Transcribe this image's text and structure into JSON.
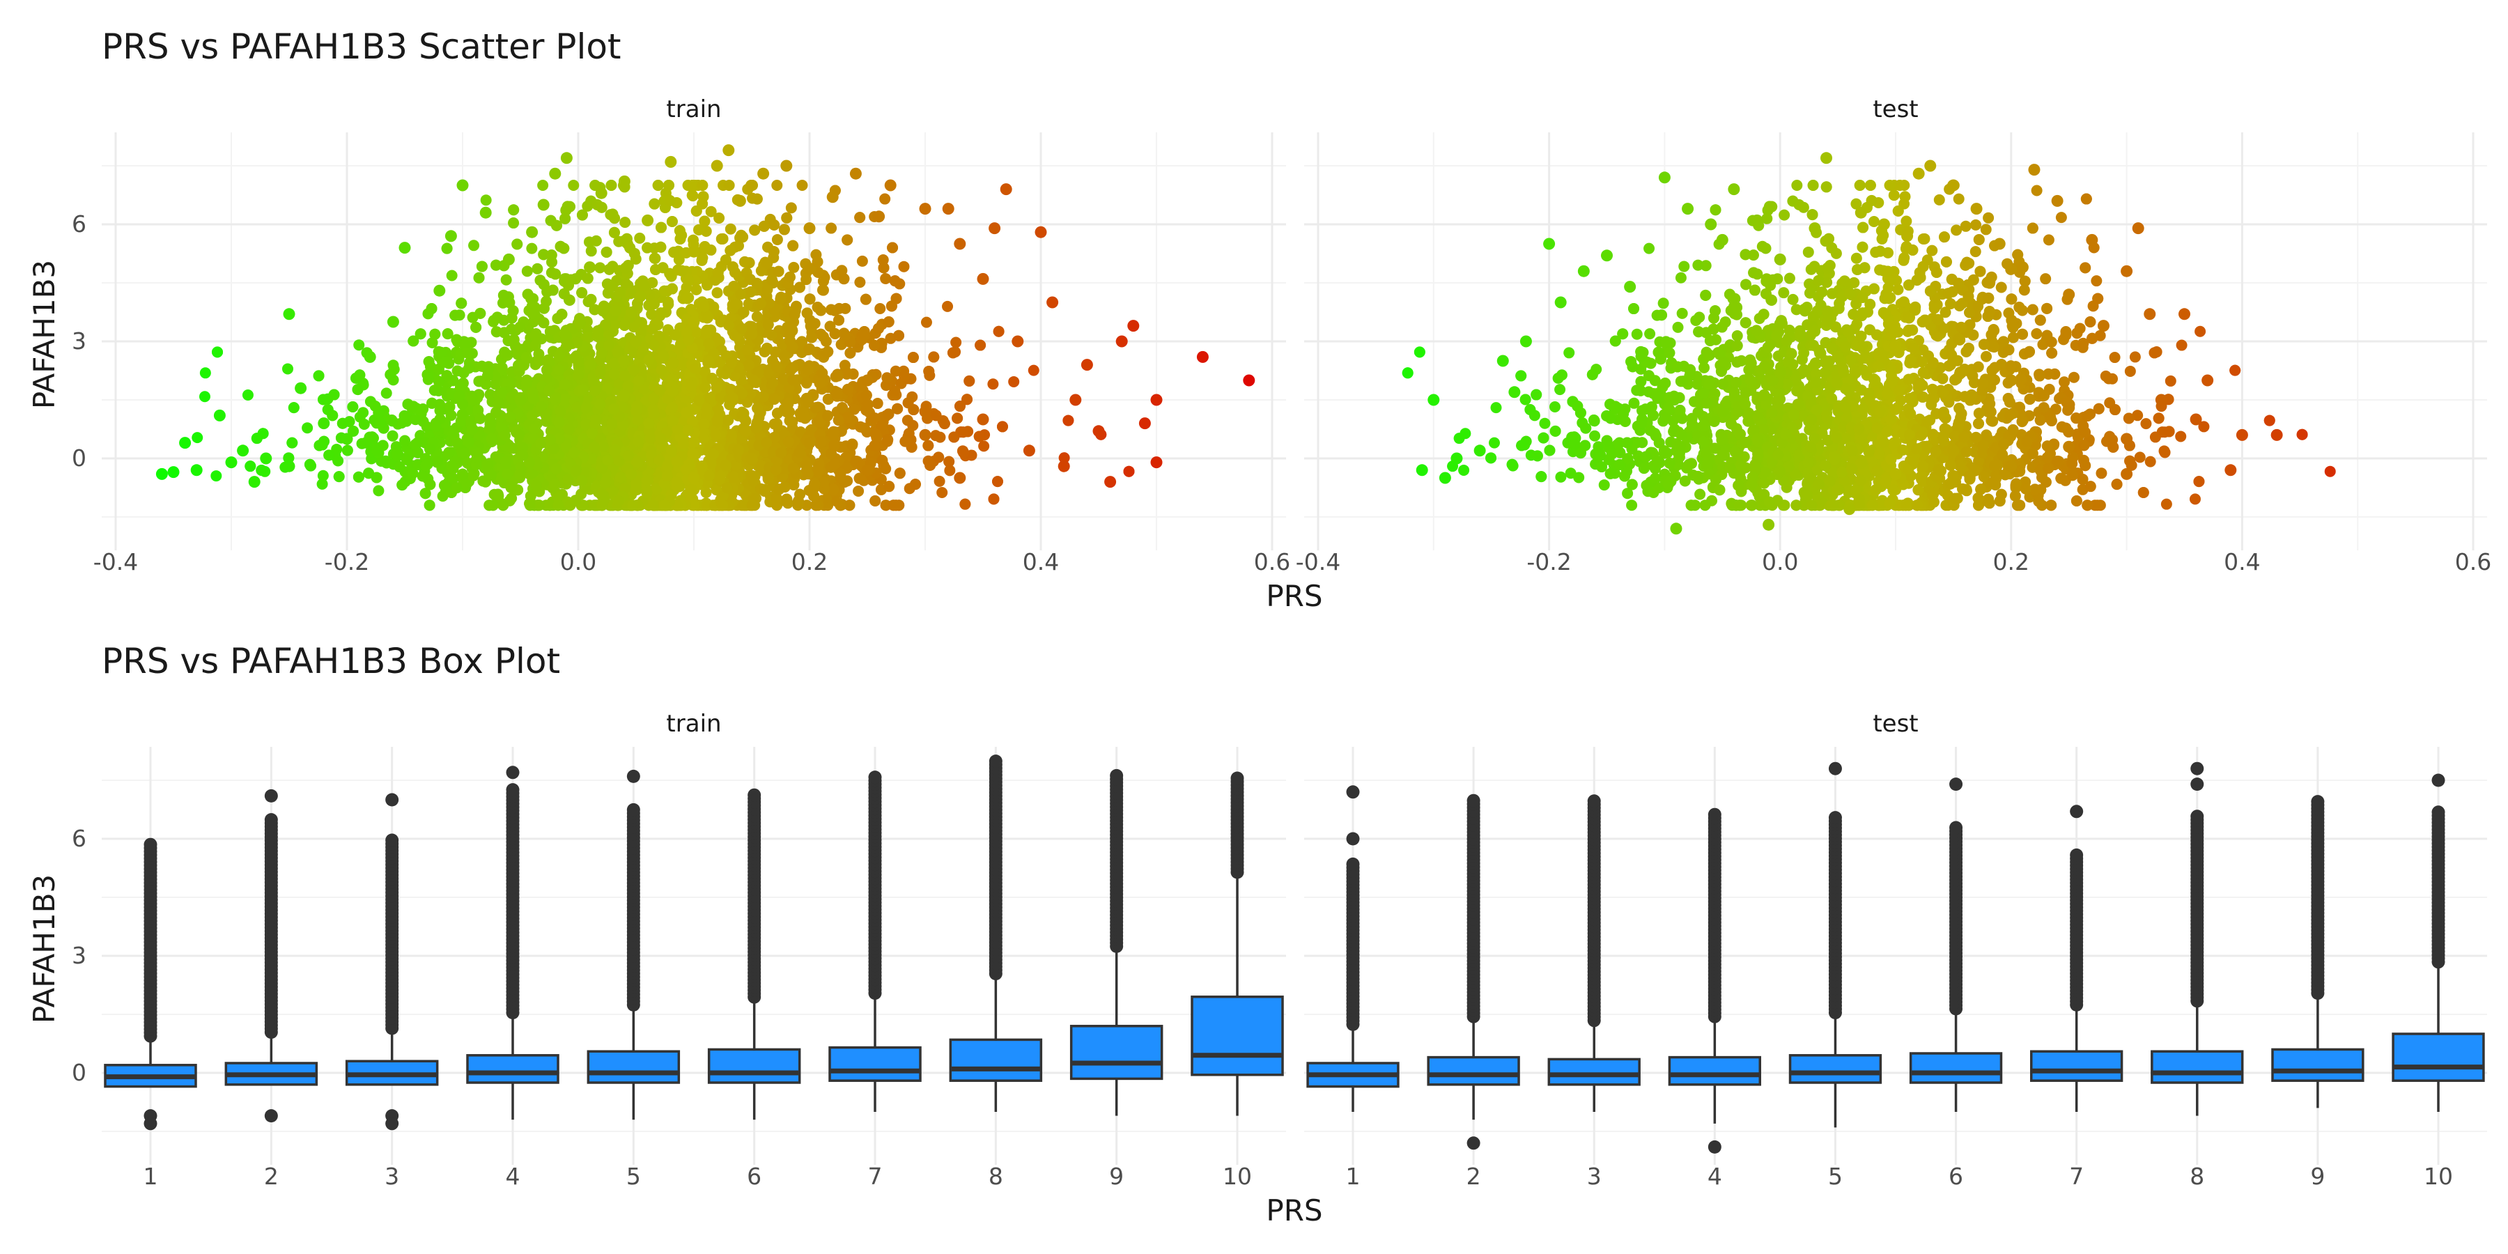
{
  "chart_data": [
    {
      "type": "scatter",
      "title": "PRS vs PAFAH1B3 Scatter Plot",
      "xlabel": "PRS",
      "ylabel": "PAFAH1B3",
      "facets": [
        "train",
        "test"
      ],
      "xlim": [
        -0.4,
        0.6
      ],
      "ylim": [
        -2,
        8
      ],
      "xticks": [
        -0.4,
        -0.2,
        0.0,
        0.2,
        0.4,
        0.6
      ],
      "xtick_labels": [
        "-0.4",
        "-0.2",
        "0.0",
        "0.2",
        "0.4",
        "0.6"
      ],
      "yticks": [
        0,
        3,
        6
      ],
      "ytick_labels": [
        "0",
        "3",
        "6"
      ],
      "color_scale": {
        "low": "#00ff00",
        "mid": "#b8b800",
        "high": "#e00000"
      },
      "series": [
        {
          "facet": "train",
          "points": [
            [
              -0.36,
              -0.4
            ],
            [
              -0.35,
              -0.35
            ],
            [
              -0.34,
              0.4
            ],
            [
              -0.33,
              -0.3
            ],
            [
              -0.31,
              1.1
            ],
            [
              -0.3,
              -0.1
            ],
            [
              -0.29,
              0.2
            ],
            [
              -0.28,
              -0.6
            ],
            [
              -0.27,
              0.0
            ],
            [
              -0.25,
              -0.2
            ],
            [
              -0.25,
              3.7
            ],
            [
              -0.24,
              1.8
            ],
            [
              -0.22,
              0.9
            ],
            [
              -0.2,
              0.5
            ],
            [
              -0.18,
              2.6
            ],
            [
              -0.16,
              3.5
            ],
            [
              -0.15,
              5.4
            ],
            [
              -0.12,
              4.3
            ],
            [
              -0.11,
              5.7
            ],
            [
              -0.1,
              7.0
            ],
            [
              -0.08,
              6.3
            ],
            [
              -0.06,
              5.1
            ],
            [
              -0.04,
              5.8
            ],
            [
              -0.03,
              6.5
            ],
            [
              -0.02,
              7.3
            ],
            [
              -0.01,
              7.7
            ],
            [
              0.01,
              4.9
            ],
            [
              0.02,
              6.8
            ],
            [
              0.04,
              7.1
            ],
            [
              0.06,
              6.1
            ],
            [
              0.08,
              7.6
            ],
            [
              0.1,
              5.3
            ],
            [
              0.12,
              7.5
            ],
            [
              0.13,
              7.9
            ],
            [
              0.14,
              6.6
            ],
            [
              0.16,
              7.3
            ],
            [
              0.18,
              7.5
            ],
            [
              0.2,
              5.9
            ],
            [
              0.22,
              6.7
            ],
            [
              0.24,
              7.3
            ],
            [
              0.26,
              6.2
            ],
            [
              0.27,
              7.0
            ],
            [
              0.3,
              6.4
            ],
            [
              0.32,
              6.4
            ],
            [
              0.33,
              5.5
            ],
            [
              0.35,
              4.6
            ],
            [
              0.36,
              5.9
            ],
            [
              0.37,
              6.9
            ],
            [
              0.38,
              3.0
            ],
            [
              0.39,
              0.2
            ],
            [
              0.4,
              5.8
            ],
            [
              0.41,
              4.0
            ],
            [
              0.42,
              -0.2
            ],
            [
              0.43,
              1.5
            ],
            [
              0.44,
              2.4
            ],
            [
              0.45,
              0.7
            ],
            [
              0.46,
              -0.6
            ],
            [
              0.47,
              3.0
            ],
            [
              0.48,
              3.4
            ],
            [
              0.49,
              0.9
            ],
            [
              0.5,
              -0.1
            ],
            [
              0.5,
              1.5
            ],
            [
              0.54,
              2.6
            ],
            [
              0.58,
              2.0
            ],
            [
              -0.05,
              1.5
            ],
            [
              0.0,
              2.5
            ],
            [
              0.05,
              3.0
            ],
            [
              0.1,
              3.5
            ],
            [
              0.15,
              3.2
            ],
            [
              0.2,
              2.8
            ],
            [
              0.25,
              2.0
            ],
            [
              0.3,
              1.2
            ],
            [
              0.05,
              -0.8
            ],
            [
              0.1,
              -0.5
            ],
            [
              0.15,
              0.0
            ],
            [
              0.2,
              0.4
            ],
            [
              0.25,
              -0.3
            ],
            [
              0.3,
              0.6
            ],
            [
              0.35,
              1.0
            ],
            [
              0.33,
              -0.5
            ]
          ]
        },
        {
          "facet": "test",
          "points": [
            [
              -0.31,
              -0.3
            ],
            [
              -0.3,
              1.5
            ],
            [
              -0.29,
              -0.5
            ],
            [
              -0.28,
              0.0
            ],
            [
              -0.26,
              0.2
            ],
            [
              -0.24,
              2.5
            ],
            [
              -0.23,
              1.7
            ],
            [
              -0.22,
              3.0
            ],
            [
              -0.2,
              5.5
            ],
            [
              -0.19,
              4.0
            ],
            [
              -0.17,
              4.8
            ],
            [
              -0.15,
              5.2
            ],
            [
              -0.13,
              4.4
            ],
            [
              -0.1,
              7.2
            ],
            [
              -0.09,
              -1.8
            ],
            [
              -0.08,
              6.4
            ],
            [
              -0.06,
              6.0
            ],
            [
              -0.05,
              5.6
            ],
            [
              -0.04,
              6.9
            ],
            [
              -0.02,
              6.1
            ],
            [
              -0.01,
              -1.7
            ],
            [
              0.0,
              5.1
            ],
            [
              0.03,
              5.9
            ],
            [
              0.04,
              7.7
            ],
            [
              0.06,
              -1.3
            ],
            [
              0.07,
              6.3
            ],
            [
              0.09,
              6.0
            ],
            [
              0.11,
              5.7
            ],
            [
              0.12,
              7.3
            ],
            [
              0.13,
              7.5
            ],
            [
              0.15,
              7.0
            ],
            [
              0.17,
              6.4
            ],
            [
              0.19,
              5.5
            ],
            [
              0.21,
              4.9
            ],
            [
              0.22,
              7.4
            ],
            [
              0.24,
              6.6
            ],
            [
              0.25,
              4.2
            ],
            [
              0.27,
              5.6
            ],
            [
              0.28,
              3.4
            ],
            [
              0.3,
              4.8
            ],
            [
              0.31,
              5.9
            ],
            [
              0.32,
              3.7
            ],
            [
              0.33,
              1.5
            ],
            [
              0.35,
              3.7
            ],
            [
              0.36,
              1.0
            ],
            [
              0.37,
              2.0
            ],
            [
              0.39,
              -0.3
            ],
            [
              0.4,
              0.6
            ],
            [
              0.43,
              0.6
            ],
            [
              -0.05,
              1.2
            ],
            [
              0.0,
              2.2
            ],
            [
              0.05,
              2.6
            ],
            [
              0.1,
              2.9
            ],
            [
              0.15,
              2.5
            ],
            [
              0.2,
              2.0
            ],
            [
              0.25,
              1.3
            ],
            [
              0.3,
              0.5
            ],
            [
              0.05,
              -0.8
            ],
            [
              0.1,
              -0.4
            ],
            [
              0.15,
              0.2
            ],
            [
              0.2,
              -0.2
            ],
            [
              0.25,
              0.3
            ],
            [
              0.3,
              -0.4
            ]
          ]
        }
      ]
    },
    {
      "type": "box",
      "title": "PRS vs PAFAH1B3 Box Plot",
      "xlabel": "PRS",
      "ylabel": "PAFAH1B3",
      "facets": [
        "train",
        "test"
      ],
      "categories": [
        "1",
        "2",
        "3",
        "4",
        "5",
        "6",
        "7",
        "8",
        "9",
        "10"
      ],
      "ylim": [
        -2,
        8
      ],
      "yticks": [
        0,
        3,
        6
      ],
      "ytick_labels": [
        "0",
        "3",
        "6"
      ],
      "box_color": "#1f8fff",
      "series": [
        {
          "facet": "train",
          "boxes": [
            {
              "q1": -0.35,
              "median": -0.1,
              "q3": 0.2,
              "lower": -0.35,
              "upper": 0.8,
              "outlier_max": 5.9,
              "outliers": [
                -1.1,
                -1.3
              ]
            },
            {
              "q1": -0.3,
              "median": -0.05,
              "q3": 0.25,
              "lower": -0.3,
              "upper": 0.9,
              "outlier_max": 6.5,
              "outliers": [
                -1.1,
                7.1
              ]
            },
            {
              "q1": -0.3,
              "median": -0.05,
              "q3": 0.3,
              "lower": -0.3,
              "upper": 1.0,
              "outlier_max": 6.0,
              "outliers": [
                -1.1,
                -1.3,
                7.0
              ]
            },
            {
              "q1": -0.25,
              "median": 0.0,
              "q3": 0.45,
              "lower": -1.2,
              "upper": 1.4,
              "outlier_max": 7.3,
              "outliers": [
                7.7
              ]
            },
            {
              "q1": -0.25,
              "median": 0.0,
              "q3": 0.55,
              "lower": -1.2,
              "upper": 1.6,
              "outlier_max": 6.8,
              "outliers": [
                7.6
              ]
            },
            {
              "q1": -0.25,
              "median": 0.0,
              "q3": 0.6,
              "lower": -1.2,
              "upper": 1.8,
              "outlier_max": 7.2,
              "outliers": []
            },
            {
              "q1": -0.2,
              "median": 0.05,
              "q3": 0.65,
              "lower": -1.0,
              "upper": 1.9,
              "outlier_max": 7.6,
              "outliers": []
            },
            {
              "q1": -0.2,
              "median": 0.1,
              "q3": 0.85,
              "lower": -1.0,
              "upper": 2.4,
              "outlier_max": 8.0,
              "outliers": []
            },
            {
              "q1": -0.15,
              "median": 0.25,
              "q3": 1.2,
              "lower": -1.1,
              "upper": 3.1,
              "outlier_max": 7.7,
              "outliers": []
            },
            {
              "q1": -0.05,
              "median": 0.45,
              "q3": 1.95,
              "lower": -1.1,
              "upper": 5.0,
              "outlier_max": 7.6,
              "outliers": []
            }
          ]
        },
        {
          "facet": "test",
          "boxes": [
            {
              "q1": -0.35,
              "median": -0.05,
              "q3": 0.25,
              "lower": -1.0,
              "upper": 1.1,
              "outlier_max": 5.4,
              "outliers": [
                6.0,
                7.2
              ]
            },
            {
              "q1": -0.3,
              "median": -0.05,
              "q3": 0.4,
              "lower": -1.2,
              "upper": 1.3,
              "outlier_max": 7.0,
              "outliers": [
                -1.8
              ]
            },
            {
              "q1": -0.3,
              "median": -0.05,
              "q3": 0.35,
              "lower": -1.0,
              "upper": 1.2,
              "outlier_max": 7.0,
              "outliers": []
            },
            {
              "q1": -0.3,
              "median": -0.05,
              "q3": 0.4,
              "lower": -1.3,
              "upper": 1.3,
              "outlier_max": 6.7,
              "outliers": [
                -1.9
              ]
            },
            {
              "q1": -0.25,
              "median": 0.0,
              "q3": 0.45,
              "lower": -1.4,
              "upper": 1.4,
              "outlier_max": 6.6,
              "outliers": [
                7.8
              ]
            },
            {
              "q1": -0.25,
              "median": 0.0,
              "q3": 0.5,
              "lower": -1.0,
              "upper": 1.5,
              "outlier_max": 6.3,
              "outliers": [
                7.4
              ]
            },
            {
              "q1": -0.2,
              "median": 0.05,
              "q3": 0.55,
              "lower": -1.0,
              "upper": 1.6,
              "outlier_max": 5.6,
              "outliers": [
                6.7
              ]
            },
            {
              "q1": -0.25,
              "median": 0.0,
              "q3": 0.55,
              "lower": -1.1,
              "upper": 1.7,
              "outlier_max": 6.6,
              "outliers": [
                7.4,
                7.8
              ]
            },
            {
              "q1": -0.2,
              "median": 0.05,
              "q3": 0.6,
              "lower": -0.9,
              "upper": 1.9,
              "outlier_max": 7.0,
              "outliers": []
            },
            {
              "q1": -0.2,
              "median": 0.15,
              "q3": 1.0,
              "lower": -1.0,
              "upper": 2.7,
              "outlier_max": 6.7,
              "outliers": [
                7.5
              ]
            }
          ]
        }
      ]
    }
  ]
}
